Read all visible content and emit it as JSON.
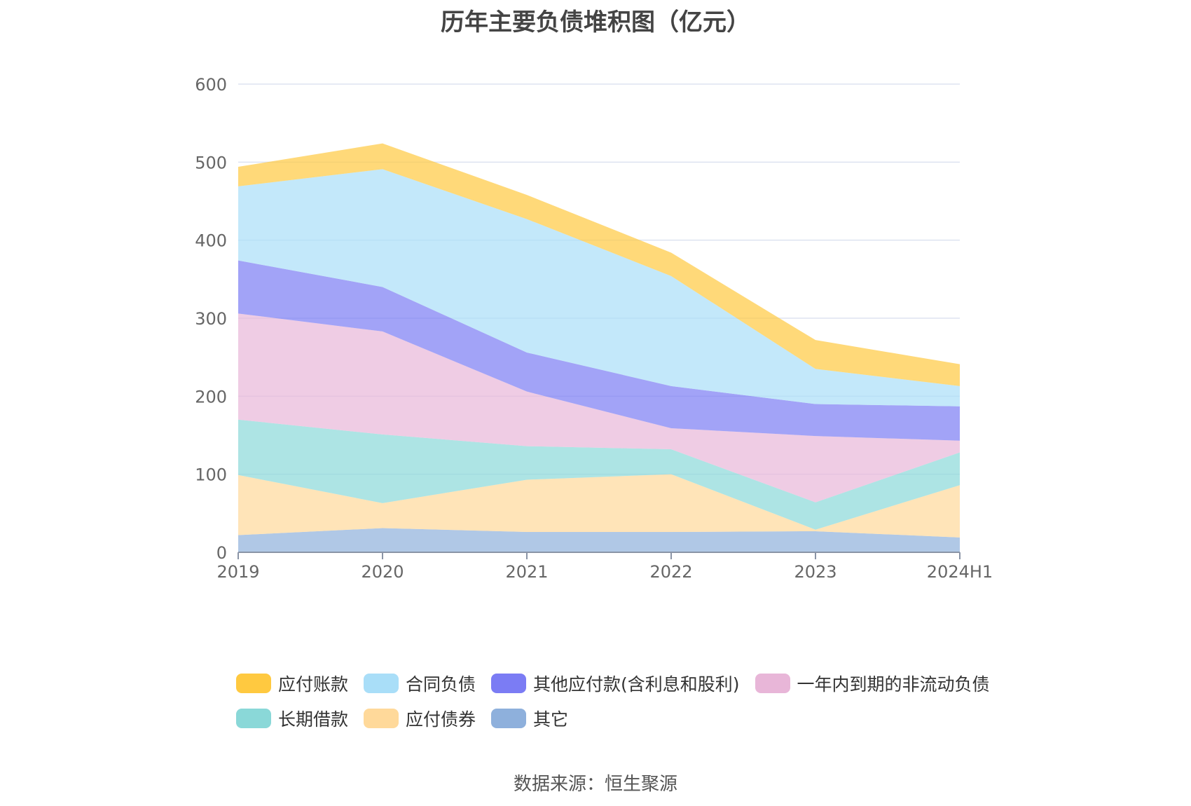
{
  "chart_data": {
    "type": "area",
    "stacked": true,
    "title": "历年主要负债堆积图（亿元）",
    "categories": [
      "2019",
      "2020",
      "2021",
      "2022",
      "2023",
      "2024H1"
    ],
    "ylim": [
      0,
      600
    ],
    "yticks": [
      0,
      100,
      200,
      300,
      400,
      500,
      600
    ],
    "grid": true,
    "legend_position": "bottom",
    "series": [
      {
        "name": "其它",
        "color": "#8eb0dc",
        "values": [
          22,
          31,
          26,
          26,
          27,
          19
        ]
      },
      {
        "name": "应付债券",
        "color": "#ffd99a",
        "values": [
          77,
          32,
          67,
          74,
          2,
          67
        ]
      },
      {
        "name": "长期借款",
        "color": "#8ad8d8",
        "values": [
          71,
          88,
          43,
          32,
          35,
          42
        ]
      },
      {
        "name": "一年内到期的非流动负债",
        "color": "#e8b6d8",
        "values": [
          136,
          132,
          70,
          27,
          85,
          15
        ]
      },
      {
        "name": "其他应付款(含利息和股利)",
        "color": "#7b7cf4",
        "values": [
          68,
          57,
          50,
          54,
          41,
          44
        ]
      },
      {
        "name": "合同负债",
        "color": "#a9def8",
        "values": [
          95,
          151,
          171,
          141,
          45,
          26
        ]
      },
      {
        "name": "应付账款",
        "color": "#ffc940",
        "values": [
          25,
          33,
          31,
          30,
          37,
          28
        ]
      }
    ]
  },
  "legend": [
    {
      "name": "应付账款",
      "color": "#ffc940"
    },
    {
      "name": "合同负债",
      "color": "#a9def8"
    },
    {
      "name": "其他应付款(含利息和股利)",
      "color": "#7b7cf4"
    },
    {
      "name": "一年内到期的非流动负债",
      "color": "#e8b6d8"
    },
    {
      "name": "长期借款",
      "color": "#8ad8d8"
    },
    {
      "name": "应付债券",
      "color": "#ffd99a"
    },
    {
      "name": "其它",
      "color": "#8eb0dc"
    }
  ],
  "source": "数据来源：恒生聚源"
}
